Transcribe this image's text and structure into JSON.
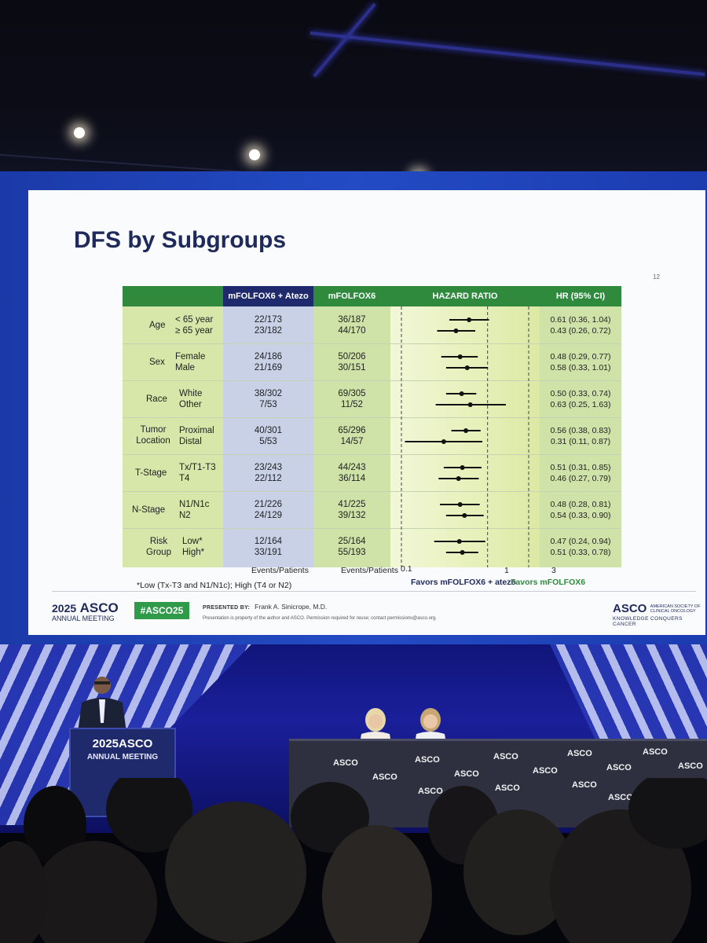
{
  "slide": {
    "title": "DFS by Subgroups",
    "page_number": "12",
    "headers": {
      "combo": "mFOLFOX6 + Atezo",
      "control": "mFOLFOX6",
      "hazard_ratio": "HAZARD RATIO",
      "hr_ci": "HR (95% CI)"
    },
    "subgroups": [
      {
        "group": "Age",
        "levels": [
          "< 65 year",
          "≥ 65 year"
        ],
        "combo": [
          "22/173",
          "23/182"
        ],
        "control": [
          "36/187",
          "44/170"
        ],
        "hr": [
          "0.61 (0.36, 1.04)",
          "0.43 (0.26, 0.72)"
        ]
      },
      {
        "group": "Sex",
        "levels": [
          "Female",
          "Male"
        ],
        "combo": [
          "24/186",
          "21/169"
        ],
        "control": [
          "50/206",
          "30/151"
        ],
        "hr": [
          "0.48 (0.29, 0.77)",
          "0.58 (0.33, 1.01)"
        ]
      },
      {
        "group": "Race",
        "levels": [
          "White",
          "Other"
        ],
        "combo": [
          "38/302",
          "7/53"
        ],
        "control": [
          "69/305",
          "11/52"
        ],
        "hr": [
          "0.50 (0.33, 0.74)",
          "0.63 (0.25, 1.63)"
        ]
      },
      {
        "group": "Tumor Location",
        "levels": [
          "Proximal",
          "Distal"
        ],
        "combo": [
          "40/301",
          "5/53"
        ],
        "control": [
          "65/296",
          "14/57"
        ],
        "hr": [
          "0.56 (0.38, 0.83)",
          "0.31 (0.11, 0.87)"
        ]
      },
      {
        "group": "T-Stage",
        "levels": [
          "Tx/T1-T3",
          "T4"
        ],
        "combo": [
          "23/243",
          "22/112"
        ],
        "control": [
          "44/243",
          "36/114"
        ],
        "hr": [
          "0.51 (0.31, 0.85)",
          "0.46 (0.27, 0.79)"
        ]
      },
      {
        "group": "N-Stage",
        "levels": [
          "N1/N1c",
          "N2"
        ],
        "combo": [
          "21/226",
          "24/129"
        ],
        "control": [
          "41/225",
          "39/132"
        ],
        "hr": [
          "0.48 (0.28, 0.81)",
          "0.54 (0.33, 0.90)"
        ]
      },
      {
        "group": "Risk Group",
        "levels": [
          "Low*",
          "High*"
        ],
        "combo": [
          "12/164",
          "33/191"
        ],
        "control": [
          "25/164",
          "55/193"
        ],
        "hr": [
          "0.47 (0.24, 0.94)",
          "0.51 (0.33, 0.78)"
        ]
      }
    ],
    "events_label_combo": "Events/Patients",
    "events_label_control": "Events/Patients",
    "axis_ticks": [
      "0.1",
      "1",
      "3"
    ],
    "favors_left": "Favors mFOLFOX6 + atezo",
    "favors_right": "Favors mFOLFOX6",
    "footnote": "*Low (Tx-T3 and N1/N1c); High (T4 or N2)",
    "footer": {
      "year": "2025",
      "asco": "ASCO",
      "meeting": "ANNUAL MEETING",
      "hashtag": "#ASCO25",
      "presented_by_label": "PRESENTED BY:",
      "presenter": "Frank A. Sinicrope, M.D.",
      "disclaimer": "Presentation is property of the author and ASCO. Permission required for reuse; contact permissions@asco.org.",
      "asco_right": "ASCO",
      "asco_right_sub": "AMERICAN SOCIETY OF CLINICAL ONCOLOGY",
      "tagline": "KNOWLEDGE CONQUERS CANCER"
    }
  },
  "stage": {
    "podium_logo": "2025ASCO",
    "podium_sub": "ANNUAL MEETING",
    "table_logo": "ASCO"
  },
  "colors": {
    "header_green": "#2f8a3e",
    "header_navy": "#1f2a6c",
    "combo_col": "#c9d1e6",
    "control_col": "#cfe3a8",
    "plot_bg": "#e6f0b8",
    "hr_col": "#cfe3a8",
    "favors_left": "#1f2a5c",
    "favors_right": "#2f8a3e"
  }
}
